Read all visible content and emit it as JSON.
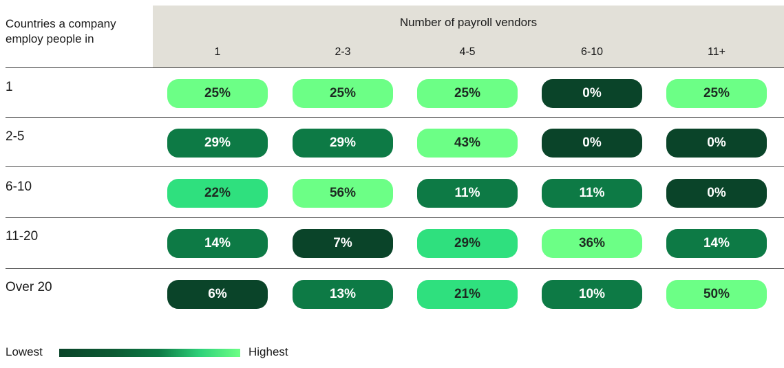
{
  "row_header_title": "Countries a company\nemploy people in",
  "column_group_title": "Number of payroll vendors",
  "legend": {
    "low_label": "Lowest",
    "high_label": "Highest"
  },
  "colors": {
    "lowest": "#0a4429",
    "low": "#0c5a33",
    "mid": "#0d7a45",
    "high": "#2fe07e",
    "highest": "#6cff86",
    "header_band": "#e2e0d8"
  },
  "chart_data": {
    "type": "heatmap",
    "title": "",
    "xlabel": "Number of payroll vendors",
    "ylabel": "Countries a company employ people in",
    "x_categories": [
      "1",
      "2-3",
      "4-5",
      "6-10",
      "11+"
    ],
    "y_categories": [
      "1",
      "2-5",
      "6-10",
      "11-20",
      "Over 20"
    ],
    "value_unit": "%",
    "values": [
      [
        25,
        25,
        25,
        0,
        25
      ],
      [
        29,
        29,
        43,
        0,
        0
      ],
      [
        22,
        56,
        11,
        11,
        0
      ],
      [
        14,
        7,
        29,
        36,
        14
      ],
      [
        6,
        13,
        21,
        10,
        50
      ]
    ],
    "labels": [
      [
        "25%",
        "25%",
        "25%",
        "0%",
        "25%"
      ],
      [
        "29%",
        "29%",
        "43%",
        "0%",
        "0%"
      ],
      [
        "22%",
        "56%",
        "11%",
        "11%",
        "0%"
      ],
      [
        "14%",
        "7%",
        "29%",
        "36%",
        "14%"
      ],
      [
        "6%",
        "13%",
        "21%",
        "10%",
        "50%"
      ]
    ],
    "cell_levels": [
      [
        "highest",
        "highest",
        "highest",
        "lowest",
        "highest"
      ],
      [
        "mid",
        "mid",
        "highest",
        "lowest",
        "lowest"
      ],
      [
        "high",
        "highest",
        "mid",
        "mid",
        "lowest"
      ],
      [
        "mid",
        "lowest",
        "high",
        "highest",
        "mid"
      ],
      [
        "lowest",
        "mid",
        "high",
        "mid",
        "highest"
      ]
    ],
    "legend": "bottom-left",
    "grid": false
  }
}
